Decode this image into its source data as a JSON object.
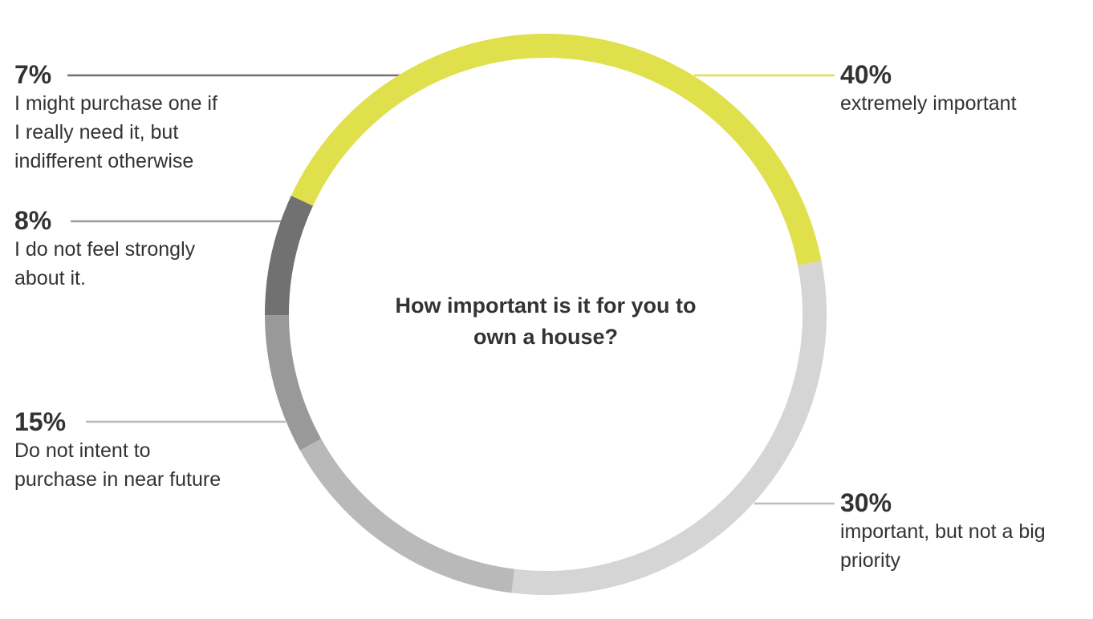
{
  "chart_data": {
    "type": "pie",
    "title": "How important is it for you to own a house?",
    "slices": [
      {
        "label": "extremely important",
        "value": 40,
        "value_text": "40%",
        "color": "#dfe04c"
      },
      {
        "label": "important, but not a big priority",
        "value": 30,
        "value_text": "30%",
        "color": "#d5d5d5"
      },
      {
        "label": "Do not intent to purchase in near future",
        "value": 15,
        "value_text": "15%",
        "color": "#b9b9b9"
      },
      {
        "label": "I do not feel strongly about it.",
        "value": 8,
        "value_text": "8%",
        "color": "#999999"
      },
      {
        "label": "I might purchase one if I really need it, but indifferent otherwise",
        "value": 7,
        "value_text": "7%",
        "color": "#717171"
      }
    ]
  },
  "labels": {
    "s40": {
      "pct": "40%",
      "lines": [
        "extremely important"
      ]
    },
    "s30": {
      "pct": "30%",
      "lines": [
        "important, but not a big",
        "priority"
      ]
    },
    "s15": {
      "pct": "15%",
      "lines": [
        "Do not intent to",
        "purchase in near future"
      ]
    },
    "s8": {
      "pct": "8%",
      "lines": [
        "I do not feel strongly",
        "about it."
      ]
    },
    "s7": {
      "pct": "7%",
      "lines": [
        "I might purchase one if",
        "I really need it, but",
        "indifferent otherwise"
      ]
    }
  }
}
